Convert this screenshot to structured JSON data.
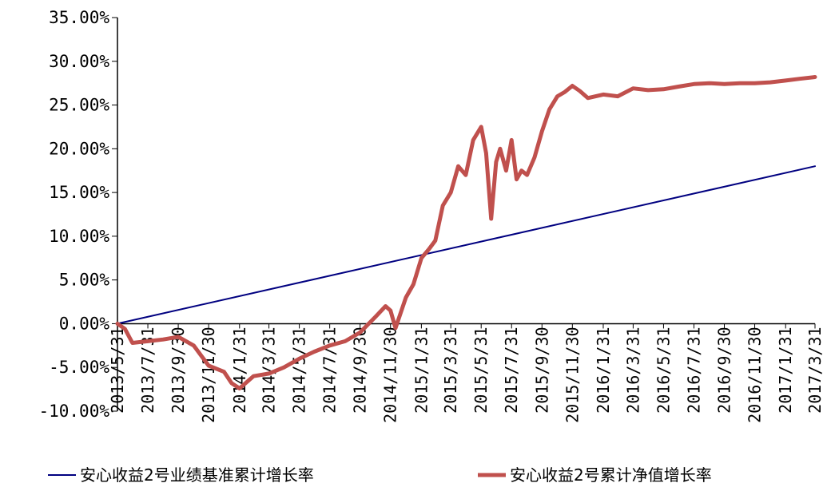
{
  "chart_data": {
    "type": "line",
    "title": "",
    "xlabel": "",
    "ylabel": "",
    "ylim": [
      -10,
      35
    ],
    "y_ticks": [
      "35.00%",
      "30.00%",
      "25.00%",
      "20.00%",
      "15.00%",
      "10.00%",
      "5.00%",
      "0.00%",
      "-5.00%",
      "-10.00%"
    ],
    "x_ticks": [
      "2013/5/31",
      "2013/7/31",
      "2013/9/30",
      "2013/11/30",
      "2014/1/31",
      "2014/3/31",
      "2014/5/31",
      "2014/7/31",
      "2014/9/30",
      "2014/11/30",
      "2015/1/31",
      "2015/3/31",
      "2015/5/31",
      "2015/7/31",
      "2015/9/30",
      "2015/11/30",
      "2016/1/31",
      "2016/3/31",
      "2016/5/31",
      "2016/7/31",
      "2016/9/30",
      "2016/11/30",
      "2017/1/31",
      "2017/3/31"
    ],
    "grid": false,
    "legend_position": "bottom",
    "series": [
      {
        "name": "安心收益2号业绩基准累计增长率",
        "color": "#000080",
        "x": [
          "2013/5/31",
          "2017/3/31"
        ],
        "values": [
          0.0,
          18.0
        ]
      },
      {
        "name": "安心收益2号累计净值增长率",
        "color": "#C0504D",
        "x": [
          "2013/5/31",
          "2013/6/15",
          "2013/6/30",
          "2013/7/31",
          "2013/8/31",
          "2013/9/30",
          "2013/10/31",
          "2013/11/30",
          "2013/12/31",
          "2014/1/15",
          "2014/1/31",
          "2014/2/28",
          "2014/3/31",
          "2014/4/30",
          "2014/5/31",
          "2014/6/30",
          "2014/7/31",
          "2014/8/31",
          "2014/9/30",
          "2014/10/31",
          "2014/11/20",
          "2014/11/30",
          "2014/12/10",
          "2014/12/31",
          "2015/1/15",
          "2015/1/31",
          "2015/2/15",
          "2015/2/28",
          "2015/3/15",
          "2015/3/31",
          "2015/4/15",
          "2015/4/30",
          "2015/5/15",
          "2015/5/31",
          "2015/6/10",
          "2015/6/20",
          "2015/6/30",
          "2015/7/8",
          "2015/7/20",
          "2015/7/31",
          "2015/8/10",
          "2015/8/20",
          "2015/8/31",
          "2015/9/15",
          "2015/9/30",
          "2015/10/15",
          "2015/10/31",
          "2015/11/15",
          "2015/11/30",
          "2015/12/15",
          "2015/12/31",
          "2016/1/31",
          "2016/2/29",
          "2016/3/31",
          "2016/4/30",
          "2016/5/31",
          "2016/6/30",
          "2016/7/31",
          "2016/8/31",
          "2016/9/30",
          "2016/10/31",
          "2016/11/30",
          "2016/12/31",
          "2017/1/31",
          "2017/2/28",
          "2017/3/31"
        ],
        "values": [
          0.0,
          -0.6,
          -2.2,
          -2.0,
          -1.8,
          -1.5,
          -2.5,
          -4.8,
          -5.5,
          -6.8,
          -7.4,
          -6.0,
          -5.7,
          -5.0,
          -4.0,
          -3.2,
          -2.5,
          -2.0,
          -1.0,
          0.8,
          2.0,
          1.5,
          -0.5,
          3.0,
          4.5,
          7.5,
          8.5,
          9.5,
          13.5,
          15.0,
          18.0,
          17.0,
          21.0,
          22.5,
          19.5,
          12.0,
          18.5,
          20.0,
          17.5,
          21.0,
          16.5,
          17.5,
          17.0,
          19.0,
          22.0,
          24.5,
          26.0,
          26.5,
          27.2,
          26.6,
          25.8,
          26.2,
          26.0,
          26.9,
          26.7,
          26.8,
          27.1,
          27.4,
          27.5,
          27.4,
          27.5,
          27.5,
          27.6,
          27.8,
          28.0,
          28.2
        ]
      }
    ]
  }
}
